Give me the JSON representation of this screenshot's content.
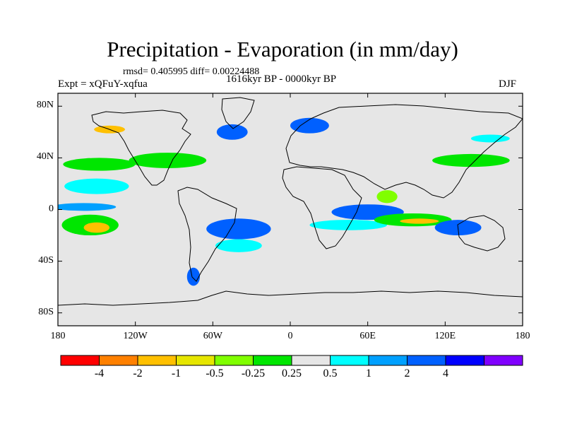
{
  "title": "Precipitation - Evaporation (in mm/day)",
  "stats": "rmsd= 0.405995 diff= 0.00224488",
  "experiment": "Expt = xQFuY-xqfua",
  "period": "1616kyr BP - 0000kyr BP",
  "season": "DJF",
  "map_data": {
    "type": "filled-contour-map",
    "projection": "cylindrical-equidistant",
    "lon_range": [
      -180,
      180
    ],
    "lat_range": [
      -90,
      90
    ],
    "y_ticks": [
      {
        "label": "80N",
        "lat": 80
      },
      {
        "label": "40N",
        "lat": 40
      },
      {
        "label": "0",
        "lat": 0
      },
      {
        "label": "40S",
        "lat": -40
      },
      {
        "label": "80S",
        "lat": -80
      }
    ],
    "x_ticks": [
      {
        "label": "180",
        "lon": -180
      },
      {
        "label": "120W",
        "lon": -120
      },
      {
        "label": "60W",
        "lon": -60
      },
      {
        "label": "0",
        "lon": 0
      },
      {
        "label": "60E",
        "lon": 60
      },
      {
        "label": "120E",
        "lon": 120
      },
      {
        "label": "180",
        "lon": 180
      }
    ],
    "background_color": "#e6e6e6",
    "colorbar": {
      "colors": [
        "#ff0000",
        "#ff8000",
        "#ffc000",
        "#e6e600",
        "#80ff00",
        "#00e600",
        "#e6e6e6",
        "#00ffff",
        "#00a0ff",
        "#0060ff",
        "#0000ff",
        "#8000ff"
      ],
      "labels": [
        "-4",
        "-2",
        "-1",
        "-0.5",
        "-0.25",
        "0.25",
        "0.5",
        "1",
        "2",
        "4"
      ]
    },
    "anomaly_regions": [
      {
        "lon": -160,
        "lat": 2,
        "rx": 25,
        "ry": 3,
        "color": "#00a0ff"
      },
      {
        "lon": -155,
        "lat": -12,
        "rx": 22,
        "ry": 8,
        "color": "#00e600"
      },
      {
        "lon": -150,
        "lat": -14,
        "rx": 10,
        "ry": 4,
        "color": "#ffc000"
      },
      {
        "lon": -150,
        "lat": 18,
        "rx": 25,
        "ry": 6,
        "color": "#00ffff"
      },
      {
        "lon": -148,
        "lat": 35,
        "rx": 28,
        "ry": 5,
        "color": "#00e600"
      },
      {
        "lon": -140,
        "lat": 62,
        "rx": 12,
        "ry": 3,
        "color": "#ffc000"
      },
      {
        "lon": -95,
        "lat": 38,
        "rx": 30,
        "ry": 6,
        "color": "#00e600"
      },
      {
        "lon": -40,
        "lat": -15,
        "rx": 25,
        "ry": 8,
        "color": "#0060ff"
      },
      {
        "lon": -40,
        "lat": -28,
        "rx": 18,
        "ry": 5,
        "color": "#00ffff"
      },
      {
        "lon": -45,
        "lat": 60,
        "rx": 12,
        "ry": 6,
        "color": "#0060ff"
      },
      {
        "lon": 15,
        "lat": 65,
        "rx": 15,
        "ry": 6,
        "color": "#0060ff"
      },
      {
        "lon": 60,
        "lat": -2,
        "rx": 28,
        "ry": 6,
        "color": "#0060ff"
      },
      {
        "lon": 45,
        "lat": -12,
        "rx": 30,
        "ry": 4,
        "color": "#00ffff"
      },
      {
        "lon": 95,
        "lat": -8,
        "rx": 30,
        "ry": 5,
        "color": "#00e600"
      },
      {
        "lon": 100,
        "lat": -9,
        "rx": 15,
        "ry": 2,
        "color": "#ffc000"
      },
      {
        "lon": 130,
        "lat": -14,
        "rx": 18,
        "ry": 6,
        "color": "#0060ff"
      },
      {
        "lon": 140,
        "lat": 38,
        "rx": 30,
        "ry": 5,
        "color": "#00e600"
      },
      {
        "lon": 155,
        "lat": 55,
        "rx": 15,
        "ry": 3,
        "color": "#00ffff"
      },
      {
        "lon": -75,
        "lat": -52,
        "rx": 5,
        "ry": 7,
        "color": "#0060ff"
      },
      {
        "lon": 75,
        "lat": 10,
        "rx": 8,
        "ry": 5,
        "color": "#80ff00"
      }
    ]
  }
}
